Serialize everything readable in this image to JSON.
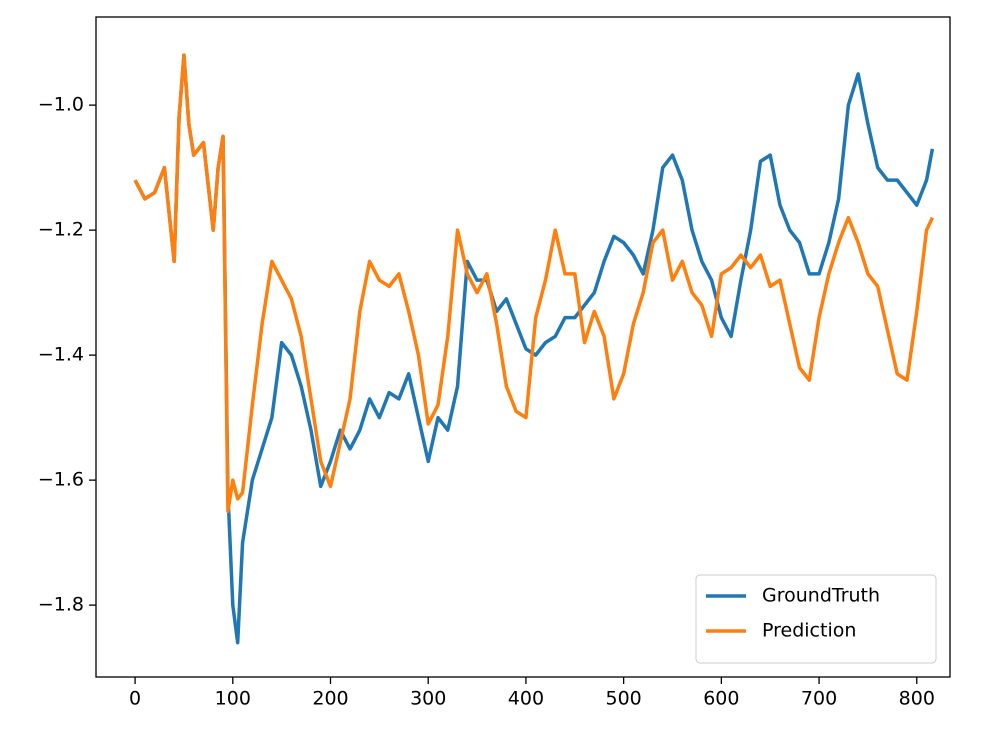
{
  "chart_data": {
    "type": "line",
    "x": [
      0,
      10,
      20,
      30,
      40,
      45,
      50,
      55,
      60,
      70,
      80,
      85,
      90,
      95,
      100,
      105,
      110,
      120,
      130,
      140,
      150,
      160,
      170,
      180,
      190,
      200,
      210,
      220,
      230,
      240,
      250,
      260,
      270,
      280,
      290,
      300,
      310,
      320,
      330,
      340,
      350,
      360,
      370,
      380,
      390,
      400,
      410,
      420,
      430,
      440,
      450,
      460,
      470,
      480,
      490,
      500,
      510,
      520,
      530,
      540,
      550,
      560,
      570,
      580,
      590,
      600,
      610,
      620,
      630,
      640,
      650,
      660,
      670,
      680,
      690,
      700,
      710,
      720,
      730,
      740,
      750,
      760,
      770,
      780,
      790,
      800,
      810,
      816
    ],
    "series": [
      {
        "name": "GroundTruth",
        "color": "#1f77b4",
        "values": [
          -1.12,
          -1.15,
          -1.14,
          -1.1,
          -1.25,
          -1.02,
          -0.92,
          -1.03,
          -1.08,
          -1.06,
          -1.2,
          -1.1,
          -1.05,
          -1.62,
          -1.8,
          -1.86,
          -1.7,
          -1.6,
          -1.55,
          -1.5,
          -1.38,
          -1.4,
          -1.45,
          -1.52,
          -1.61,
          -1.57,
          -1.52,
          -1.55,
          -1.52,
          -1.47,
          -1.5,
          -1.46,
          -1.47,
          -1.43,
          -1.5,
          -1.57,
          -1.5,
          -1.52,
          -1.45,
          -1.25,
          -1.28,
          -1.28,
          -1.33,
          -1.31,
          -1.35,
          -1.39,
          -1.4,
          -1.38,
          -1.37,
          -1.34,
          -1.34,
          -1.32,
          -1.3,
          -1.25,
          -1.21,
          -1.22,
          -1.24,
          -1.27,
          -1.2,
          -1.1,
          -1.08,
          -1.12,
          -1.2,
          -1.25,
          -1.28,
          -1.34,
          -1.37,
          -1.28,
          -1.2,
          -1.09,
          -1.08,
          -1.16,
          -1.2,
          -1.22,
          -1.27,
          -1.27,
          -1.22,
          -1.15,
          -1.0,
          -0.95,
          -1.03,
          -1.1,
          -1.12,
          -1.12,
          -1.14,
          -1.16,
          -1.12,
          -1.07
        ]
      },
      {
        "name": "Prediction",
        "color": "#ff7f0e",
        "values": [
          -1.12,
          -1.15,
          -1.14,
          -1.1,
          -1.25,
          -1.02,
          -0.92,
          -1.03,
          -1.08,
          -1.06,
          -1.2,
          -1.1,
          -1.05,
          -1.65,
          -1.6,
          -1.63,
          -1.62,
          -1.48,
          -1.35,
          -1.25,
          -1.28,
          -1.31,
          -1.37,
          -1.47,
          -1.57,
          -1.61,
          -1.54,
          -1.47,
          -1.33,
          -1.25,
          -1.28,
          -1.29,
          -1.27,
          -1.33,
          -1.4,
          -1.51,
          -1.48,
          -1.37,
          -1.2,
          -1.27,
          -1.3,
          -1.27,
          -1.35,
          -1.45,
          -1.49,
          -1.5,
          -1.34,
          -1.28,
          -1.2,
          -1.27,
          -1.27,
          -1.38,
          -1.33,
          -1.37,
          -1.47,
          -1.43,
          -1.35,
          -1.3,
          -1.22,
          -1.2,
          -1.28,
          -1.25,
          -1.3,
          -1.32,
          -1.37,
          -1.27,
          -1.26,
          -1.24,
          -1.26,
          -1.24,
          -1.29,
          -1.28,
          -1.35,
          -1.42,
          -1.44,
          -1.34,
          -1.27,
          -1.22,
          -1.18,
          -1.22,
          -1.27,
          -1.29,
          -1.36,
          -1.43,
          -1.44,
          -1.33,
          -1.2,
          -1.18
        ]
      }
    ],
    "xlim": [
      -40,
      834
    ],
    "xticks": [
      0,
      100,
      200,
      300,
      400,
      500,
      600,
      700,
      800
    ],
    "ylim": [
      -1.915,
      -0.859
    ],
    "yticks": [
      {
        "value": -1.8,
        "label": "−1.8"
      },
      {
        "value": -1.6,
        "label": "−1.6"
      },
      {
        "value": -1.4,
        "label": "−1.4"
      },
      {
        "value": -1.2,
        "label": "−1.2"
      },
      {
        "value": -1.0,
        "label": "−1.0"
      }
    ],
    "grid": false,
    "legend": "lower right"
  }
}
